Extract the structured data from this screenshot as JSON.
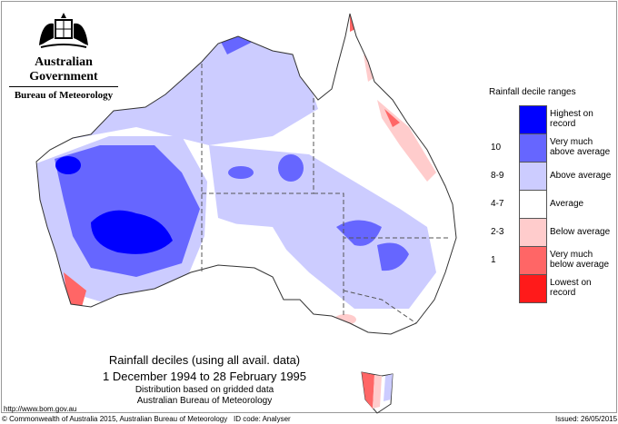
{
  "header": {
    "government": "Australian Government",
    "bureau": "Bureau of Meteorology"
  },
  "legend": {
    "title": "Rainfall decile ranges",
    "items": [
      {
        "range": "",
        "label1": "Highest on",
        "label2": "record",
        "color": "#0000ff"
      },
      {
        "range": "10",
        "label1": "Very much",
        "label2": "above average",
        "color": "#6666ff"
      },
      {
        "range": "8-9",
        "label1": "Above average",
        "label2": "",
        "color": "#ccccff"
      },
      {
        "range": "4-7",
        "label1": "Average",
        "label2": "",
        "color": "#ffffff"
      },
      {
        "range": "2-3",
        "label1": "Below average",
        "label2": "",
        "color": "#ffcccc"
      },
      {
        "range": "1",
        "label1": "Very much",
        "label2": "below average",
        "color": "#ff6666"
      },
      {
        "range": "",
        "label1": "Lowest on",
        "label2": "record",
        "color": "#ff1a1a"
      }
    ]
  },
  "caption": {
    "title": "Rainfall deciles (using all avail. data)",
    "period": "1 December 1994 to 28 February 1995",
    "note1": "Distribution based on gridded data",
    "note2": "Australian Bureau of Meteorology"
  },
  "footer": {
    "url": "http://www.bom.gov.au",
    "copyright": "© Commonwealth of Australia 2015, Australian Bureau of Meteorology",
    "id_code": "ID code: Analyser",
    "issued": "Issued: 26/05/2015"
  }
}
